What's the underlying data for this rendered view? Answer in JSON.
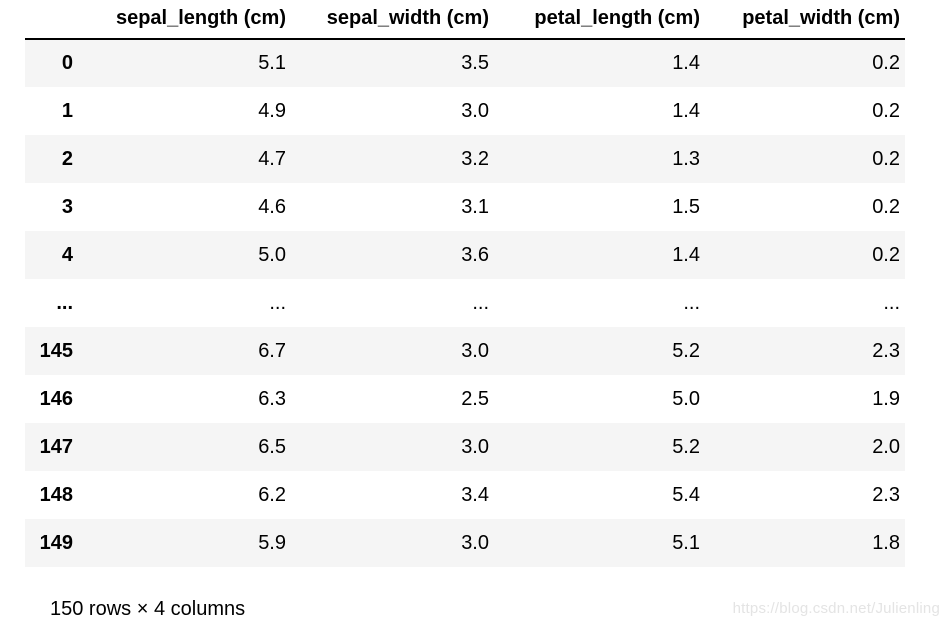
{
  "table": {
    "index_header": "",
    "columns": [
      "sepal_length (cm)",
      "sepal_width (cm)",
      "petal_length (cm)",
      "petal_width (cm)"
    ],
    "rows": [
      {
        "index": "0",
        "values": [
          "5.1",
          "3.5",
          "1.4",
          "0.2"
        ]
      },
      {
        "index": "1",
        "values": [
          "4.9",
          "3.0",
          "1.4",
          "0.2"
        ]
      },
      {
        "index": "2",
        "values": [
          "4.7",
          "3.2",
          "1.3",
          "0.2"
        ]
      },
      {
        "index": "3",
        "values": [
          "4.6",
          "3.1",
          "1.5",
          "0.2"
        ]
      },
      {
        "index": "4",
        "values": [
          "5.0",
          "3.6",
          "1.4",
          "0.2"
        ]
      },
      {
        "index": "...",
        "values": [
          "...",
          "...",
          "...",
          "..."
        ]
      },
      {
        "index": "145",
        "values": [
          "6.7",
          "3.0",
          "5.2",
          "2.3"
        ]
      },
      {
        "index": "146",
        "values": [
          "6.3",
          "2.5",
          "5.0",
          "1.9"
        ]
      },
      {
        "index": "147",
        "values": [
          "6.5",
          "3.0",
          "5.2",
          "2.0"
        ]
      },
      {
        "index": "148",
        "values": [
          "6.2",
          "3.4",
          "5.4",
          "2.3"
        ]
      },
      {
        "index": "149",
        "values": [
          "5.9",
          "3.0",
          "5.1",
          "1.8"
        ]
      }
    ],
    "summary": "150 rows × 4 columns"
  },
  "watermark": "https://blog.csdn.net/Julienling",
  "colors": {
    "stripe": "#f5f5f5",
    "header_border": "#000000",
    "watermark": "#e4e4e4",
    "text": "#000000",
    "background": "#ffffff"
  }
}
